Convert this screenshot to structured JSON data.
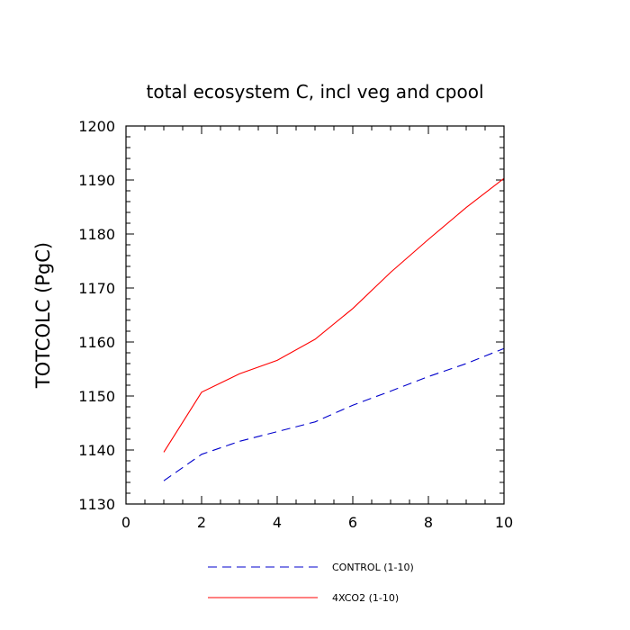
{
  "chart_data": {
    "type": "line",
    "title": "total ecosystem C, incl veg and cpool",
    "xlabel": "",
    "ylabel": "TOTCOLC  (PgC)",
    "xlim": [
      0,
      10
    ],
    "ylim": [
      1130,
      1200
    ],
    "xticks": [
      0,
      2,
      4,
      6,
      8,
      10
    ],
    "yticks": [
      1130,
      1140,
      1150,
      1160,
      1170,
      1180,
      1190,
      1200
    ],
    "x_minor_step": 0.5,
    "y_minor_step": 2,
    "legend_position": "bottom",
    "series": [
      {
        "name": "CONTROL (1-10)",
        "color": "#0000cc",
        "dash": "dashed",
        "x": [
          1,
          2,
          3,
          4,
          5,
          6,
          7,
          8,
          9,
          10
        ],
        "y": [
          1134.3,
          1139.2,
          1141.6,
          1143.4,
          1145.2,
          1148.3,
          1150.9,
          1153.6,
          1156.0,
          1158.8
        ]
      },
      {
        "name": "4XCO2 (1-10)",
        "color": "#ff0000",
        "dash": "solid",
        "x": [
          1,
          2,
          3,
          4,
          5,
          6,
          7,
          8,
          9,
          10
        ],
        "y": [
          1139.6,
          1150.7,
          1154.1,
          1156.6,
          1160.5,
          1166.2,
          1172.9,
          1179.0,
          1184.9,
          1190.3
        ]
      }
    ]
  }
}
